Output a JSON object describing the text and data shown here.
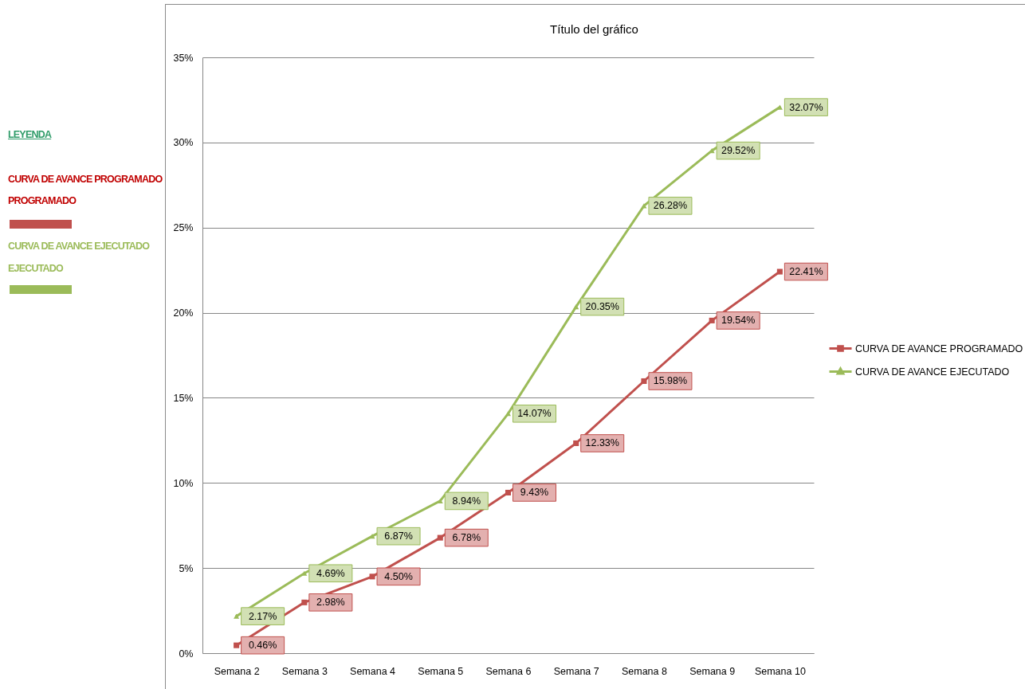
{
  "chart_data": {
    "type": "line",
    "title": "Título del gráfico",
    "categories": [
      "Semana 2",
      "Semana 3",
      "Semana 4",
      "Semana 5",
      "Semana 6",
      "Semana 7",
      "Semana 8",
      "Semana 9",
      "Semana 10"
    ],
    "series": [
      {
        "name": "CURVA DE AVANCE PROGRAMADO",
        "color": "#c0504d",
        "marker": "square",
        "values": [
          0.46,
          2.98,
          4.5,
          6.78,
          9.43,
          12.33,
          15.98,
          19.54,
          22.41
        ],
        "value_labels": [
          "0.46%",
          "2.98%",
          "4.50%",
          "6.78%",
          "9.43%",
          "12.33%",
          "15.98%",
          "19.54%",
          "22.41%"
        ]
      },
      {
        "name": "CURVA DE AVANCE EJECUTADO",
        "color": "#9bbb59",
        "marker": "triangle",
        "values": [
          2.17,
          4.69,
          6.87,
          8.94,
          14.07,
          20.35,
          26.28,
          29.52,
          32.07
        ],
        "value_labels": [
          "2.17%",
          "4.69%",
          "6.87%",
          "8.94%",
          "14.07%",
          "20.35%",
          "26.28%",
          "29.52%",
          "32.07%"
        ]
      }
    ],
    "ylim": [
      0,
      35
    ],
    "yticks": [
      {
        "value": 0,
        "label": "0%"
      },
      {
        "value": 5,
        "label": "5%"
      },
      {
        "value": 10,
        "label": "10%"
      },
      {
        "value": 15,
        "label": "15%"
      },
      {
        "value": 20,
        "label": "20%"
      },
      {
        "value": 25,
        "label": "25%"
      },
      {
        "value": 30,
        "label": "30%"
      },
      {
        "value": 35,
        "label": "35%"
      }
    ],
    "grid": "y",
    "legend": "right",
    "line_style": "solid",
    "annotations": [
      "LEYENDA",
      "CURVA DE AVANCE PROGRAMADO",
      "PROGRAMADO",
      "CURVA DE AVANCE EJECUTADO",
      "EJECUTADO"
    ]
  }
}
